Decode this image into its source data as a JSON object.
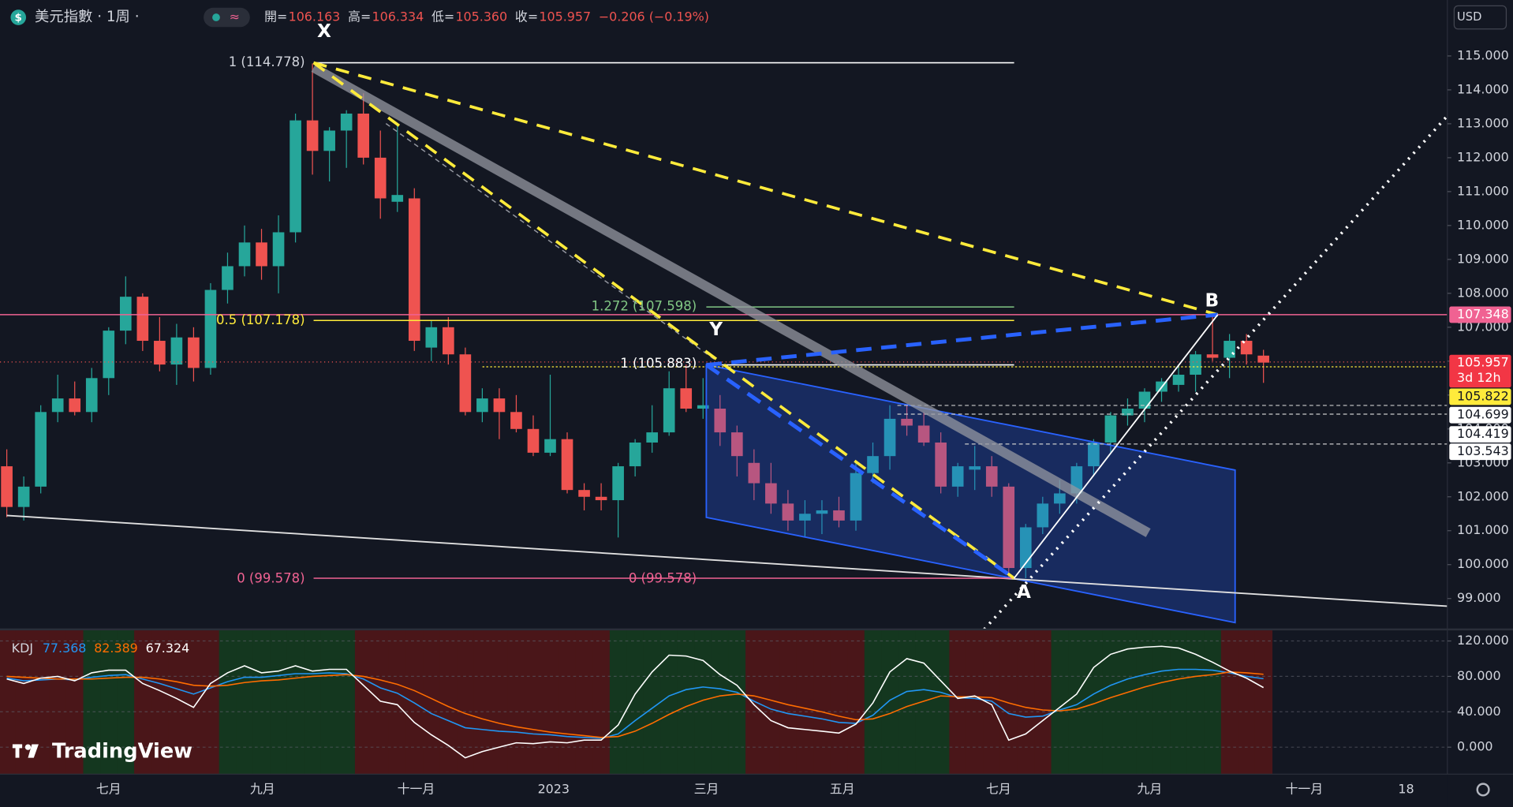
{
  "chart_data": {
    "type": "candlestick",
    "title": "美元指數 · 1周 ·",
    "currency": "USD",
    "header": [
      {
        "label": "開=",
        "value": "106.163"
      },
      {
        "label": "高=",
        "value": "106.334"
      },
      {
        "label": "低=",
        "value": "105.360"
      },
      {
        "label": "收=",
        "value": "105.957"
      }
    ],
    "change": "−0.206 (−0.19%)",
    "brand": "TradingView",
    "up_color": "#26a69a",
    "down_color": "#ef5350",
    "candles": {
      "open": [
        102.9,
        101.7,
        102.3,
        104.5,
        104.9,
        104.5,
        105.5,
        106.9,
        107.9,
        106.6,
        105.9,
        106.7,
        105.8,
        108.1,
        108.8,
        109.5,
        108.8,
        109.8,
        113.1,
        112.2,
        112.8,
        113.3,
        112.0,
        110.7,
        110.8,
        106.4,
        107.0,
        106.2,
        104.5,
        104.9,
        104.5,
        104.0,
        103.3,
        103.7,
        102.2,
        102.0,
        101.9,
        102.9,
        103.6,
        103.9,
        105.2,
        104.6,
        104.6,
        103.9,
        103.0,
        102.4,
        101.8,
        101.3,
        101.5,
        101.6,
        101.3,
        102.7,
        103.2,
        104.3,
        104.1,
        103.6,
        102.3,
        102.8,
        102.9,
        102.3,
        99.9,
        101.1,
        101.8,
        102.1,
        102.9,
        103.6,
        104.4,
        104.6,
        105.1,
        105.3,
        105.6,
        106.2,
        106.1,
        106.6,
        106.163
      ],
      "high": [
        103.4,
        102.6,
        104.7,
        105.6,
        105.4,
        105.8,
        107.0,
        108.5,
        108.0,
        107.3,
        107.1,
        107.0,
        108.3,
        109.2,
        110.0,
        109.9,
        110.3,
        113.3,
        114.778,
        112.9,
        113.4,
        113.9,
        112.8,
        113.0,
        111.1,
        107.2,
        107.3,
        106.4,
        105.2,
        105.2,
        105.0,
        104.4,
        105.6,
        103.9,
        102.4,
        102.4,
        103.0,
        103.7,
        104.7,
        105.7,
        105.9,
        105.5,
        105.0,
        104.1,
        103.4,
        103.0,
        102.2,
        101.9,
        101.9,
        102.0,
        103.0,
        103.6,
        104.7,
        104.7,
        104.5,
        103.9,
        103.0,
        103.5,
        103.2,
        102.4,
        101.2,
        102.0,
        102.5,
        103.0,
        103.7,
        104.5,
        104.9,
        105.2,
        105.5,
        105.9,
        106.3,
        107.348,
        106.8,
        106.8,
        106.334
      ],
      "low": [
        101.4,
        101.3,
        102.1,
        104.2,
        104.4,
        104.2,
        105.0,
        106.5,
        106.3,
        105.7,
        105.3,
        105.4,
        105.6,
        107.7,
        108.5,
        108.4,
        108.0,
        109.5,
        111.5,
        111.3,
        111.7,
        111.8,
        110.2,
        110.4,
        106.3,
        106.0,
        105.9,
        104.4,
        104.2,
        103.7,
        103.9,
        103.2,
        103.2,
        102.1,
        101.6,
        101.6,
        100.8,
        102.6,
        103.3,
        103.8,
        104.5,
        104.3,
        103.5,
        102.6,
        101.9,
        101.5,
        101.0,
        100.8,
        100.9,
        101.1,
        101.0,
        102.4,
        102.8,
        103.8,
        103.5,
        102.1,
        102.0,
        102.2,
        102.0,
        99.578,
        99.6,
        100.9,
        101.5,
        101.8,
        102.6,
        103.3,
        104.1,
        104.2,
        104.8,
        105.1,
        105.1,
        106.0,
        105.5,
        105.9,
        105.36
      ],
      "close": [
        101.7,
        102.3,
        104.5,
        104.9,
        104.5,
        105.5,
        106.9,
        107.9,
        106.6,
        105.9,
        106.7,
        105.8,
        108.1,
        108.8,
        109.5,
        108.8,
        109.8,
        113.1,
        112.2,
        112.8,
        113.3,
        112.0,
        110.8,
        110.9,
        106.6,
        107.0,
        106.2,
        104.5,
        104.9,
        104.5,
        104.0,
        103.3,
        103.7,
        102.2,
        102.0,
        101.9,
        102.9,
        103.6,
        103.9,
        105.2,
        104.6,
        104.7,
        103.9,
        103.2,
        102.4,
        101.8,
        101.3,
        101.5,
        101.6,
        101.3,
        102.7,
        103.2,
        104.3,
        104.1,
        103.6,
        102.3,
        102.9,
        102.9,
        102.3,
        99.9,
        101.1,
        101.8,
        102.1,
        102.9,
        103.6,
        104.4,
        104.6,
        105.1,
        105.4,
        105.6,
        106.2,
        106.1,
        106.6,
        106.2,
        105.957
      ]
    },
    "xlim": [
      -0.4,
      84.83
    ],
    "xticks": [
      {
        "value": 6.0,
        "label": "七月"
      },
      {
        "value": 15.06,
        "label": "九月"
      },
      {
        "value": 24.1,
        "label": "十一月"
      },
      {
        "value": 32.2,
        "label": "2023"
      },
      {
        "value": 41.2,
        "label": "三月"
      },
      {
        "value": 49.2,
        "label": "五月"
      },
      {
        "value": 58.4,
        "label": "七月"
      },
      {
        "value": 67.3,
        "label": "九月"
      },
      {
        "value": 76.4,
        "label": "十一月"
      },
      {
        "value": 82.4,
        "label": "18"
      }
    ],
    "ylim": [
      98.09,
      116.65
    ],
    "yticks": [
      {
        "value": 99,
        "label": "99.000"
      },
      {
        "value": 100,
        "label": "100.000"
      },
      {
        "value": 101,
        "label": "101.000"
      },
      {
        "value": 102,
        "label": "102.000"
      },
      {
        "value": 103,
        "label": "103.000"
      },
      {
        "value": 104,
        "label": "104.000"
      },
      {
        "value": 105,
        "label": "105.000"
      },
      {
        "value": 106,
        "label": "106.000"
      },
      {
        "value": 107,
        "label": "107.000"
      },
      {
        "value": 108,
        "label": "108.000"
      },
      {
        "value": 109,
        "label": "109.000"
      },
      {
        "value": 110,
        "label": "110.000"
      },
      {
        "value": 111,
        "label": "111.000"
      },
      {
        "value": 112,
        "label": "112.000"
      },
      {
        "value": 113,
        "label": "113.000"
      },
      {
        "value": 114,
        "label": "114.000"
      },
      {
        "value": 115,
        "label": "115.000"
      }
    ],
    "price_labels": [
      {
        "text": "107.348",
        "color": "#f06292"
      },
      {
        "text": "105.957",
        "sub": "3d 12h",
        "color": "#f23645"
      },
      {
        "text": "105.822",
        "color": "#ffeb3b"
      },
      {
        "text": "104.699",
        "color": "#ffffff"
      },
      {
        "text": "104.419",
        "color": "#ffffff"
      },
      {
        "text": "103.543",
        "color": "#ffffff"
      }
    ],
    "drawings": {
      "x": "X",
      "y": "Y",
      "a": "A",
      "b": "B",
      "fib_top": "1 (114.778)",
      "fib_half": "0.5 (107.178)",
      "fib_ext": "1.272 (107.598)",
      "fib_y": "1 (105.883)",
      "fib_zero": "0 (99.578)",
      "fib_zero2": "0 (99.578)"
    },
    "indicator": {
      "name": "KDJ",
      "ylim": [
        -30.5,
        133.1
      ],
      "yticks": [
        {
          "value": 0,
          "label": "0.000"
        },
        {
          "value": 40,
          "label": "40.000"
        },
        {
          "value": 80,
          "label": "80.000"
        },
        {
          "value": 120,
          "label": "120.000"
        }
      ],
      "up_band": "#14371f",
      "down_band": "#4a1619",
      "series": [
        {
          "color": "#2196f3",
          "values": [
            78,
            75,
            76,
            77,
            76,
            79,
            81,
            82,
            77,
            72,
            66,
            60,
            67,
            74,
            79,
            79,
            81,
            83,
            83,
            84,
            83,
            77,
            67,
            61,
            50,
            38,
            30,
            22,
            20,
            18,
            17,
            15,
            14,
            12,
            11,
            10,
            15,
            30,
            44,
            58,
            65,
            68,
            66,
            62,
            52,
            43,
            38,
            35,
            32,
            28,
            27,
            36,
            53,
            63,
            65,
            62,
            56,
            55,
            52,
            38,
            34,
            35,
            42,
            48,
            60,
            70,
            77,
            82,
            86,
            88,
            88,
            87,
            84,
            80,
            77.368
          ]
        },
        {
          "color": "#ff6d00",
          "values": [
            80,
            79,
            78,
            77,
            77,
            77,
            78,
            79,
            79,
            77,
            74,
            70,
            69,
            70,
            73,
            75,
            76,
            78,
            80,
            81,
            82,
            80,
            76,
            71,
            64,
            55,
            46,
            38,
            32,
            27,
            23,
            20,
            17,
            15,
            13,
            11,
            12,
            18,
            27,
            37,
            46,
            53,
            58,
            60,
            58,
            53,
            48,
            44,
            40,
            35,
            31,
            32,
            38,
            46,
            52,
            58,
            57,
            57,
            56,
            50,
            45,
            42,
            41,
            43,
            49,
            56,
            62,
            68,
            73,
            77,
            80,
            82,
            85,
            84,
            82.389
          ]
        },
        {
          "color": "#ffffff",
          "values": [
            77,
            72,
            78,
            80,
            75,
            84,
            87,
            87,
            72,
            64,
            55,
            45,
            72,
            84,
            92,
            84,
            86,
            92,
            86,
            88,
            88,
            70,
            52,
            48,
            28,
            14,
            2,
            -12,
            -5,
            0,
            5,
            4,
            6,
            5,
            8,
            8,
            25,
            60,
            85,
            104,
            103,
            98,
            82,
            70,
            48,
            30,
            22,
            20,
            18,
            16,
            26,
            50,
            85,
            100,
            95,
            75,
            55,
            58,
            48,
            8,
            15,
            30,
            45,
            60,
            90,
            105,
            111,
            113,
            114,
            112,
            105,
            96,
            86,
            78,
            67.324
          ]
        }
      ]
    }
  }
}
